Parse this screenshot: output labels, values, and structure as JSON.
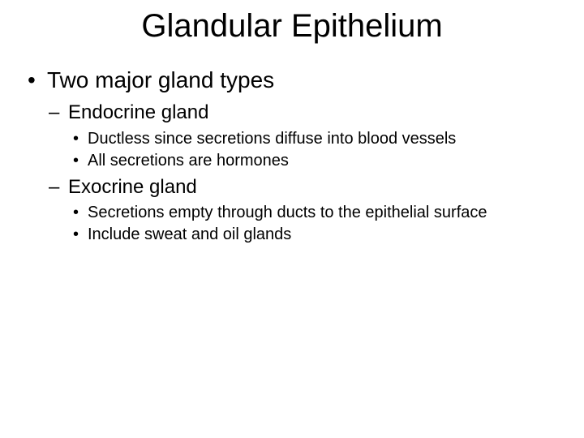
{
  "slide": {
    "title": "Glandular Epithelium",
    "title_fontsize": 40,
    "background_color": "#ffffff",
    "text_color": "#000000",
    "font_family": "Arial",
    "bullets": {
      "l1": [
        {
          "text": "Two major gland types",
          "fontsize": 28,
          "l2": [
            {
              "text": "Endocrine gland",
              "fontsize": 24,
              "l3": [
                {
                  "text": "Ductless since secretions diffuse into blood vessels",
                  "fontsize": 20
                },
                {
                  "text": "All secretions are hormones",
                  "fontsize": 20
                }
              ]
            },
            {
              "text": "Exocrine gland",
              "fontsize": 24,
              "l3": [
                {
                  "text": "Secretions empty through ducts to the epithelial surface",
                  "fontsize": 20
                },
                {
                  "text": "Include sweat and oil glands",
                  "fontsize": 20
                }
              ]
            }
          ]
        }
      ]
    }
  }
}
